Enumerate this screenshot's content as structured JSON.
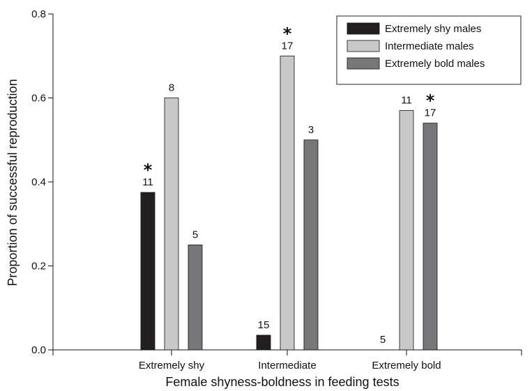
{
  "chart_data": {
    "type": "bar",
    "title": "",
    "xlabel": "Female shyness-boldness in feeding tests",
    "ylabel": "Proportion of successful reproduction",
    "ylim": [
      0.0,
      0.8
    ],
    "yticks": [
      "0.0",
      "0.2",
      "0.4",
      "0.6",
      "0.8"
    ],
    "categories": [
      "Extremely shy",
      "Intermediate",
      "Extremely bold"
    ],
    "legend_position": "top-right",
    "series": [
      {
        "name": "Extremely shy males",
        "color": "#231f20",
        "values": [
          0.375,
          0.035,
          0.0
        ],
        "n": [
          "11",
          "15",
          "5"
        ],
        "significant": [
          true,
          false,
          false
        ]
      },
      {
        "name": "Intermediate males",
        "color": "#c8c8c8",
        "values": [
          0.6,
          0.7,
          0.57
        ],
        "n": [
          "8",
          "17",
          "11"
        ],
        "significant": [
          false,
          true,
          false
        ]
      },
      {
        "name": "Extremely bold males",
        "color": "#77777a",
        "values": [
          0.25,
          0.5,
          0.54
        ],
        "n": [
          "5",
          "3",
          "17"
        ],
        "significant": [
          false,
          false,
          true
        ]
      }
    ],
    "significance_marker": "*"
  }
}
